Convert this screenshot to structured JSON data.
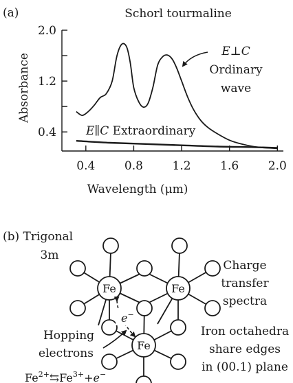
{
  "panel_a": {
    "label": "(a)",
    "title": "Schorl tourmaline",
    "y_axis_label": "Absorbance",
    "x_axis_label": "Wavelength (μm)",
    "ordinary_annotation": {
      "line1_italic": "E⊥C",
      "line2": "Ordinary",
      "line3": "wave"
    },
    "extraordinary_annotation": {
      "italic": "E∥C",
      "text": " Extraordinary"
    }
  },
  "chart_data": {
    "type": "line",
    "title": "Schorl tourmaline",
    "xlabel": "Wavelength (μm)",
    "ylabel": "Absorbance",
    "xlim": [
      0.2,
      2.05
    ],
    "ylim": [
      0.1,
      2.0
    ],
    "x_ticks": [
      0.4,
      0.8,
      1.2,
      1.6,
      2.0
    ],
    "x_tick_labels": [
      "0.4",
      "0.8",
      "1.2",
      "1.6",
      "2.0"
    ],
    "y_ticks": [
      0.4,
      1.2,
      2.0
    ],
    "y_tick_labels": [
      "0.4",
      "1.2",
      "2.0"
    ],
    "y_minor_ticks": [
      0.8,
      1.6
    ],
    "series": [
      {
        "name": "E⊥C Ordinary wave",
        "x": [
          0.32,
          0.37,
          0.42,
          0.47,
          0.52,
          0.57,
          0.62,
          0.66,
          0.7,
          0.74,
          0.77,
          0.8,
          0.84,
          0.88,
          0.92,
          0.96,
          1.0,
          1.04,
          1.08,
          1.12,
          1.16,
          1.2,
          1.25,
          1.3,
          1.36,
          1.42,
          1.5,
          1.6,
          1.7,
          1.8,
          1.9,
          2.0
        ],
        "y": [
          0.72,
          0.66,
          0.72,
          0.82,
          0.94,
          1.0,
          1.2,
          1.6,
          1.78,
          1.74,
          1.5,
          1.1,
          0.88,
          0.79,
          0.85,
          1.1,
          1.45,
          1.58,
          1.61,
          1.55,
          1.4,
          1.2,
          0.95,
          0.75,
          0.58,
          0.47,
          0.37,
          0.27,
          0.21,
          0.17,
          0.15,
          0.14
        ]
      },
      {
        "name": "E∥C Extraordinary",
        "x": [
          0.32,
          0.6,
          0.9,
          1.2,
          1.5,
          1.8,
          2.0
        ],
        "y": [
          0.26,
          0.23,
          0.21,
          0.19,
          0.17,
          0.16,
          0.15
        ]
      }
    ]
  },
  "panel_b": {
    "label": "(b) Trigonal",
    "label_line2": "3m",
    "right_top_lines": [
      "Charge",
      "transfer",
      "spectra"
    ],
    "right_bottom_lines": [
      "Iron octahedra",
      "share edges",
      "in (00.1) plane"
    ],
    "hopping_lines": [
      "Hopping",
      "electrons"
    ],
    "fe_label": "Fe",
    "electron_label": "e",
    "electron_sup": "−",
    "equation": {
      "a": "Fe",
      "a_sup": "2+",
      "arrow": "⇆",
      "b": "Fe",
      "b_sup": "3+",
      "plus": "+",
      "e": "e",
      "e_sup": "−"
    }
  }
}
